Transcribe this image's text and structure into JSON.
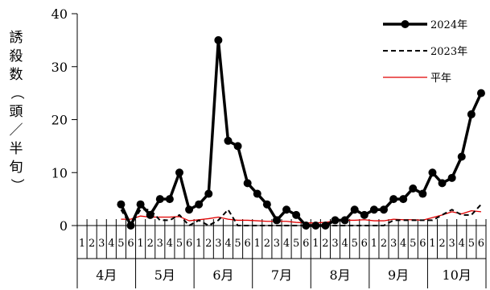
{
  "chart_data": {
    "type": "line",
    "ylabel_chars": [
      "誘",
      "殺",
      "数",
      "（",
      "頭",
      "／",
      "半",
      "旬",
      "）"
    ],
    "ylim": [
      0,
      40
    ],
    "yticks": [
      0,
      10,
      20,
      30,
      40
    ],
    "months": [
      "4月",
      "5月",
      "6月",
      "7月",
      "8月",
      "9月",
      "10月"
    ],
    "period_labels": [
      "1",
      "2",
      "3",
      "4",
      "5",
      "6"
    ],
    "legend_position": "top-right",
    "series": [
      {
        "name": "2024年",
        "style": "solid-marker",
        "color": "#000000",
        "values": [
          null,
          null,
          null,
          null,
          4,
          0,
          4,
          2,
          5,
          5,
          10,
          3,
          4,
          6,
          35,
          16,
          15,
          8,
          6,
          4,
          1,
          3,
          2,
          0,
          0,
          0,
          1,
          1,
          3,
          2,
          3,
          3,
          5,
          5,
          7,
          6,
          10,
          8,
          9,
          13,
          21,
          25
        ]
      },
      {
        "name": "2023年",
        "style": "dashed",
        "color": "#000000",
        "values": [
          null,
          null,
          null,
          null,
          3,
          0,
          3,
          3,
          1,
          1,
          2,
          0,
          1,
          0,
          1,
          3,
          0,
          0,
          0,
          0,
          0,
          0,
          0,
          0,
          0,
          0,
          0,
          0,
          0,
          0,
          0,
          0,
          1,
          1,
          1,
          1,
          1,
          2,
          3,
          2,
          2,
          4
        ]
      },
      {
        "name": "平年",
        "style": "solid-thin",
        "color": "#e00000",
        "values": [
          null,
          null,
          null,
          null,
          1.2,
          1.2,
          1.8,
          1.6,
          1.6,
          1.6,
          1.7,
          0.9,
          1.1,
          1.3,
          1.6,
          1.2,
          1.0,
          1.0,
          0.9,
          0.8,
          0.8,
          0.8,
          0.6,
          0.5,
          0.5,
          0.6,
          0.9,
          1.0,
          1.0,
          1.1,
          0.9,
          0.9,
          1.2,
          1.1,
          1.1,
          1.0,
          1.5,
          2.0,
          2.6,
          2.2,
          2.8,
          2.6
        ]
      }
    ]
  }
}
